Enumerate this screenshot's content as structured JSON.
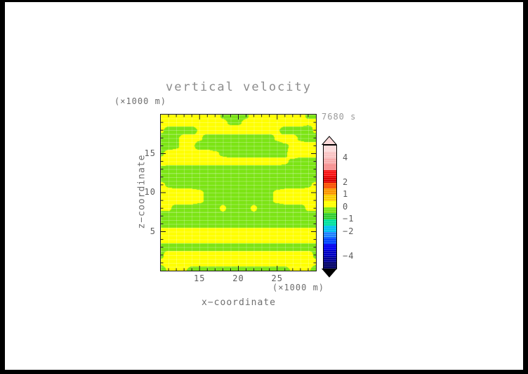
{
  "chart_data": {
    "type": "heatmap",
    "title": "vertical velocity",
    "time_label": "7680 s",
    "x_axis": {
      "label": "x−coordinate",
      "unit_label": "(×1000 m)",
      "range": [
        10,
        30
      ],
      "major_ticks": [
        15,
        20,
        25
      ],
      "minor_tick_step": 1
    },
    "z_axis": {
      "label": "z−coordinate",
      "unit_label": "(×1000 m)",
      "range": [
        0,
        20
      ],
      "major_ticks": [
        5,
        10,
        15
      ],
      "minor_tick_step": 1
    },
    "field_note": "coarse grid of vertical velocity sign; rows top(z=20) to bottom(z=0), cols x=10..30; negative=green, positive=yellow",
    "field": [
      [
        0.4,
        0.4,
        0.4,
        0.4,
        0.4,
        0.4,
        0.4,
        0.4,
        -0.15,
        -0.4,
        -0.4,
        -0.15,
        0.4,
        0.4,
        0.4,
        0.4,
        0.4,
        0.4,
        0.4,
        -0.15,
        -0.15
      ],
      [
        0.4,
        0.4,
        0.4,
        0.4,
        0.4,
        0.4,
        0.4,
        0.4,
        0.15,
        -0.1,
        -0.1,
        0.15,
        0.4,
        0.4,
        0.4,
        0.4,
        0.4,
        0.4,
        0.4,
        0.15,
        0.15
      ],
      [
        0.15,
        -0.4,
        -0.4,
        -0.4,
        -0.4,
        0.15,
        0.4,
        0.4,
        0.4,
        0.4,
        0.4,
        0.4,
        0.4,
        0.4,
        0.4,
        0.15,
        -0.4,
        -0.4,
        -0.4,
        -0.4,
        0.15
      ],
      [
        -0.4,
        -0.4,
        -0.15,
        0.4,
        0.4,
        0.15,
        -0.4,
        -0.4,
        -0.4,
        -0.4,
        -0.4,
        -0.4,
        -0.4,
        -0.4,
        -0.4,
        0.15,
        0.4,
        0.4,
        -0.15,
        -0.4,
        -0.4
      ],
      [
        -0.4,
        -0.4,
        -0.15,
        0.4,
        0.15,
        -0.4,
        -0.4,
        -0.4,
        -0.4,
        -0.4,
        -0.4,
        -0.4,
        -0.4,
        -0.4,
        -0.4,
        -0.4,
        -0.15,
        0.15,
        0.4,
        0.4,
        0.4
      ],
      [
        -0.15,
        0.4,
        0.4,
        0.4,
        0.4,
        0.4,
        0.4,
        0.15,
        -0.15,
        -0.4,
        -0.4,
        -0.4,
        -0.4,
        -0.4,
        -0.4,
        -0.4,
        -0.15,
        0.4,
        0.4,
        0.4,
        0.4
      ],
      [
        0.4,
        0.4,
        0.4,
        0.4,
        0.4,
        0.4,
        0.4,
        0.4,
        0.4,
        0.4,
        0.4,
        0.4,
        0.4,
        0.4,
        0.4,
        0.4,
        0.15,
        -0.15,
        -0.4,
        -0.4,
        -0.4
      ],
      [
        -0.3,
        -0.4,
        -0.4,
        -0.4,
        -0.4,
        -0.4,
        -0.4,
        -0.4,
        -0.4,
        -0.4,
        -0.4,
        -0.4,
        -0.4,
        -0.4,
        -0.4,
        -0.4,
        -0.4,
        -0.4,
        -0.4,
        -0.4,
        -0.4
      ],
      [
        -0.4,
        -0.4,
        -0.4,
        -0.4,
        -0.4,
        -0.4,
        -0.4,
        -0.4,
        -0.4,
        -0.4,
        -0.4,
        -0.4,
        -0.4,
        -0.4,
        -0.4,
        -0.4,
        -0.4,
        -0.4,
        -0.4,
        -0.4,
        -0.4
      ],
      [
        0.15,
        -0.15,
        -0.4,
        -0.4,
        -0.4,
        -0.4,
        -0.4,
        -0.4,
        -0.4,
        -0.4,
        -0.4,
        -0.4,
        -0.4,
        -0.4,
        -0.4,
        -0.4,
        -0.4,
        -0.4,
        -0.4,
        -0.15,
        0.15
      ],
      [
        0.4,
        0.4,
        0.4,
        0.4,
        0.4,
        0.15,
        -0.15,
        -0.4,
        -0.4,
        -0.4,
        -0.4,
        -0.4,
        -0.4,
        -0.4,
        -0.15,
        0.15,
        0.4,
        0.4,
        0.4,
        0.4,
        0.4
      ],
      [
        0.4,
        0.4,
        0.4,
        0.4,
        0.4,
        0.15,
        -0.15,
        -0.4,
        -0.4,
        -0.4,
        -0.4,
        -0.4,
        -0.4,
        -0.4,
        -0.15,
        0.15,
        0.4,
        0.4,
        0.4,
        0.4,
        0.4
      ],
      [
        0.15,
        0.15,
        -0.4,
        -0.4,
        -0.4,
        -0.4,
        -0.4,
        -0.4,
        0.25,
        -0.4,
        -0.4,
        -0.4,
        0.25,
        -0.4,
        -0.4,
        -0.4,
        -0.4,
        -0.4,
        -0.4,
        0.15,
        0.15
      ],
      [
        -0.4,
        -0.4,
        -0.4,
        -0.4,
        -0.4,
        -0.4,
        -0.4,
        -0.4,
        -0.4,
        -0.4,
        -0.4,
        -0.4,
        -0.4,
        -0.4,
        -0.4,
        -0.4,
        -0.4,
        -0.4,
        -0.4,
        -0.4,
        -0.4
      ],
      [
        -0.4,
        -0.4,
        -0.4,
        -0.4,
        -0.4,
        -0.4,
        -0.4,
        -0.4,
        -0.4,
        -0.4,
        -0.4,
        -0.4,
        -0.4,
        -0.4,
        -0.4,
        -0.4,
        -0.4,
        -0.4,
        -0.4,
        -0.4,
        -0.4
      ],
      [
        0.4,
        0.4,
        0.4,
        0.4,
        0.4,
        0.4,
        0.4,
        0.4,
        0.4,
        0.4,
        0.4,
        0.4,
        0.4,
        0.4,
        0.4,
        0.4,
        0.4,
        0.4,
        0.4,
        0.4,
        0.4
      ],
      [
        0.4,
        0.4,
        0.4,
        0.4,
        0.4,
        0.4,
        0.4,
        0.4,
        0.4,
        0.4,
        0.4,
        0.4,
        0.4,
        0.4,
        0.4,
        0.4,
        0.4,
        0.4,
        0.4,
        0.4,
        0.4
      ],
      [
        -0.4,
        -0.4,
        -0.4,
        -0.4,
        -0.4,
        -0.4,
        -0.4,
        -0.4,
        -0.4,
        -0.4,
        -0.4,
        -0.4,
        -0.4,
        -0.4,
        -0.4,
        -0.4,
        -0.4,
        -0.4,
        -0.4,
        -0.4,
        -0.4
      ],
      [
        -0.15,
        0.4,
        0.4,
        0.4,
        0.4,
        0.4,
        0.4,
        0.4,
        0.4,
        0.4,
        0.4,
        0.4,
        0.4,
        0.4,
        0.4,
        0.4,
        0.4,
        0.4,
        0.4,
        0.4,
        -0.15
      ],
      [
        0.15,
        0.4,
        0.4,
        0.4,
        0.4,
        0.4,
        0.4,
        0.4,
        0.4,
        0.4,
        0.4,
        0.4,
        0.4,
        0.4,
        0.4,
        0.4,
        0.4,
        0.4,
        0.4,
        0.4,
        0.15
      ],
      [
        -0.4,
        0.15,
        0.4,
        0.15,
        -0.4,
        -0.4,
        -0.4,
        -0.4,
        -0.4,
        -0.4,
        -0.4,
        -0.4,
        -0.4,
        -0.4,
        -0.4,
        -0.4,
        -0.4,
        0.15,
        0.4,
        0.15,
        -0.4
      ]
    ],
    "positive_color": "#ffff00",
    "negative_color": "#7ce414",
    "colorbar": {
      "scale_min": -5,
      "scale_max": 5,
      "tick_labels": [
        {
          "value": 4,
          "label": "4"
        },
        {
          "value": 2,
          "label": "2"
        },
        {
          "value": 1,
          "label": "1"
        },
        {
          "value": 0,
          "label": "0"
        },
        {
          "value": -1,
          "label": "−1"
        },
        {
          "value": -2,
          "label": "−2"
        },
        {
          "value": -4,
          "label": "−4"
        }
      ],
      "segments": [
        {
          "from": 4.5,
          "to": 5.0,
          "color": "#fbdada"
        },
        {
          "from": 4.0,
          "to": 4.5,
          "color": "#f9c4c4"
        },
        {
          "from": 3.5,
          "to": 4.0,
          "color": "#f7acac"
        },
        {
          "from": 3.0,
          "to": 3.5,
          "color": "#f59090"
        },
        {
          "from": 2.5,
          "to": 3.0,
          "color": "#f81414"
        },
        {
          "from": 2.0,
          "to": 2.5,
          "color": "#dc0000"
        },
        {
          "from": 1.5,
          "to": 2.0,
          "color": "#fa5000"
        },
        {
          "from": 1.0,
          "to": 1.5,
          "color": "#fa9600"
        },
        {
          "from": 0.5,
          "to": 1.0,
          "color": "#facc00"
        },
        {
          "from": 0.0,
          "to": 0.5,
          "color": "#ffff00"
        },
        {
          "from": -0.5,
          "to": 0.0,
          "color": "#7ce414"
        },
        {
          "from": -1.0,
          "to": -0.5,
          "color": "#32ce32"
        },
        {
          "from": -1.5,
          "to": -1.0,
          "color": "#00e09e"
        },
        {
          "from": -2.0,
          "to": -1.5,
          "color": "#00c0f0"
        },
        {
          "from": -2.5,
          "to": -2.0,
          "color": "#1e82ff"
        },
        {
          "from": -3.0,
          "to": -2.5,
          "color": "#0046ff"
        },
        {
          "from": -3.5,
          "to": -3.0,
          "color": "#0000ee"
        },
        {
          "from": -4.0,
          "to": -3.5,
          "color": "#0000c3"
        },
        {
          "from": -4.5,
          "to": -4.0,
          "color": "#000096"
        },
        {
          "from": -5.0,
          "to": -4.5,
          "color": "#000066"
        }
      ],
      "over_arrow_color": "#fbdada",
      "under_arrow_color": "#000000"
    }
  }
}
